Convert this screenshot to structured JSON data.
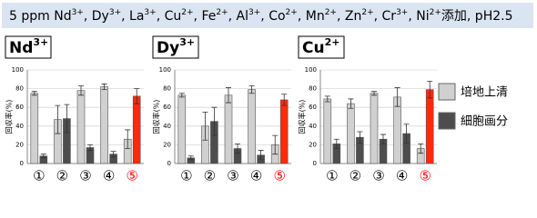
{
  "banner": {
    "prefix": "5 ppm ",
    "ions": [
      {
        "base": "Nd",
        "sup": "3+"
      },
      {
        "base": "Dy",
        "sup": "3+"
      },
      {
        "base": "La",
        "sup": "3+"
      },
      {
        "base": "Cu",
        "sup": "2+"
      },
      {
        "base": "Fe",
        "sup": "2+"
      },
      {
        "base": "Al",
        "sup": "3+"
      },
      {
        "base": "Co",
        "sup": "2+"
      },
      {
        "base": "Mn",
        "sup": "2+"
      },
      {
        "base": "Zn",
        "sup": "2+"
      },
      {
        "base": "Cr",
        "sup": "3+"
      },
      {
        "base": "Ni",
        "sup": "2+"
      }
    ],
    "separator": ", ",
    "suffix": "添加, pH2.5"
  },
  "legend": [
    {
      "name": "培地上清",
      "color": "#d0d0d0"
    },
    {
      "name": "細胞画分",
      "color": "#4d4d4d"
    }
  ],
  "chart_data": [
    {
      "type": "bar",
      "title": "Nd",
      "title_sup": "3+",
      "y_label": "回収率(%)",
      "categories": [
        "①",
        "②",
        "③",
        "④",
        "⑤"
      ],
      "category_colors": [
        "#000000",
        "#000000",
        "#000000",
        "#000000",
        "#ff0000"
      ],
      "ylim": [
        0,
        100
      ],
      "yticks": [
        0,
        20,
        40,
        60,
        80,
        100
      ],
      "grid": true,
      "series": [
        {
          "colors": [
            "#d0d0d0",
            "#d0d0d0",
            "#d0d0d0",
            "#d0d0d0",
            "#d0d0d0"
          ],
          "values": [
            75,
            47,
            78,
            82,
            26
          ],
          "errors": [
            2,
            15,
            5,
            3,
            10
          ]
        },
        {
          "colors": [
            "#4d4d4d",
            "#4d4d4d",
            "#4d4d4d",
            "#4d4d4d",
            "#ff2a0a"
          ],
          "values": [
            8,
            48,
            17,
            10,
            72
          ],
          "errors": [
            2,
            15,
            3,
            3,
            8
          ]
        }
      ]
    },
    {
      "type": "bar",
      "title": "Dy",
      "title_sup": "3+",
      "y_label": "回収率(%)",
      "categories": [
        "①",
        "②",
        "③",
        "④",
        "⑤"
      ],
      "category_colors": [
        "#000000",
        "#000000",
        "#000000",
        "#000000",
        "#ff0000"
      ],
      "ylim": [
        0,
        100
      ],
      "yticks": [
        0,
        20,
        40,
        60,
        80,
        100
      ],
      "grid": true,
      "series": [
        {
          "colors": [
            "#d0d0d0",
            "#d0d0d0",
            "#d0d0d0",
            "#d0d0d0",
            "#d0d0d0"
          ],
          "values": [
            73,
            40,
            73,
            79,
            20
          ],
          "errors": [
            2,
            15,
            8,
            4,
            10
          ]
        },
        {
          "colors": [
            "#4d4d4d",
            "#4d4d4d",
            "#4d4d4d",
            "#4d4d4d",
            "#ff2a0a"
          ],
          "values": [
            6,
            45,
            16,
            9,
            68
          ],
          "errors": [
            2,
            15,
            5,
            5,
            6
          ]
        }
      ]
    },
    {
      "type": "bar",
      "title": "Cu",
      "title_sup": "2+",
      "y_label": "回収率(%)",
      "categories": [
        "①",
        "②",
        "③",
        "④",
        "⑤"
      ],
      "category_colors": [
        "#000000",
        "#000000",
        "#000000",
        "#000000",
        "#ff0000"
      ],
      "ylim": [
        0,
        100
      ],
      "yticks": [
        0,
        20,
        40,
        60,
        80,
        100
      ],
      "grid": true,
      "series": [
        {
          "colors": [
            "#d0d0d0",
            "#d0d0d0",
            "#d0d0d0",
            "#d0d0d0",
            "#d0d0d0"
          ],
          "values": [
            69,
            64,
            75,
            71,
            16
          ],
          "errors": [
            3,
            5,
            2,
            10,
            5
          ]
        },
        {
          "colors": [
            "#4d4d4d",
            "#4d4d4d",
            "#4d4d4d",
            "#4d4d4d",
            "#ff2a0a"
          ],
          "values": [
            21,
            28,
            26,
            32,
            79
          ],
          "errors": [
            5,
            6,
            5,
            10,
            9
          ]
        }
      ]
    }
  ]
}
